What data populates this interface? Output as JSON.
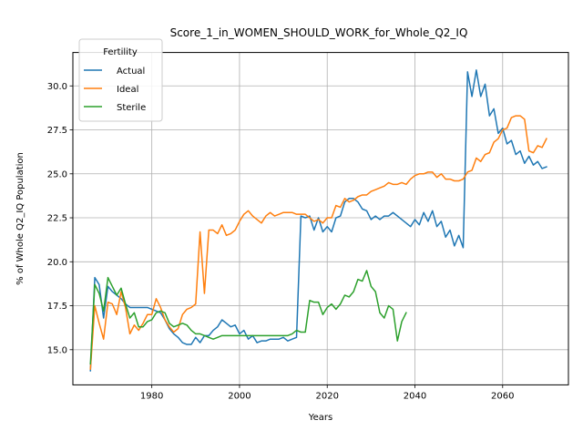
{
  "chart_data": {
    "type": "line",
    "title": "Score_1_in_WOMEN_SHOULD_WORK_for_Whole_Q2_IQ",
    "xlabel": "Years",
    "ylabel": "% of Whole Q2_IQ Population",
    "xlim": [
      1962,
      2075
    ],
    "ylim": [
      13.0,
      31.9
    ],
    "xticks": [
      1980,
      2000,
      2020,
      2040,
      2060
    ],
    "yticks": [
      15.0,
      17.5,
      20.0,
      22.5,
      25.0,
      27.5,
      30.0
    ],
    "xtick_labels": [
      "1980",
      "2000",
      "2020",
      "2040",
      "2060"
    ],
    "ytick_labels": [
      "15.0",
      "17.5",
      "20.0",
      "22.5",
      "25.0",
      "27.5",
      "30.0"
    ],
    "grid": true,
    "legend": {
      "title": "Fertility",
      "placement": "upper left"
    },
    "series": [
      {
        "name": "Actual",
        "color": "#1f77b4",
        "x": [
          1966,
          1967,
          1968,
          1969,
          1970,
          1971,
          1972,
          1973,
          1974,
          1975,
          1976,
          1977,
          1978,
          1979,
          1980,
          1981,
          1982,
          1983,
          1984,
          1985,
          1986,
          1987,
          1988,
          1989,
          1990,
          1991,
          1992,
          1993,
          1994,
          1995,
          1996,
          1997,
          1998,
          1999,
          2000,
          2001,
          2002,
          2003,
          2004,
          2005,
          2006,
          2007,
          2008,
          2009,
          2010,
          2011,
          2012,
          2013,
          2014,
          2015,
          2016,
          2017,
          2018,
          2019,
          2020,
          2021,
          2022,
          2023,
          2024,
          2025,
          2026,
          2027,
          2028,
          2029,
          2030,
          2031,
          2032,
          2033,
          2034,
          2035,
          2036,
          2037,
          2038,
          2039,
          2040,
          2041,
          2042,
          2043,
          2044,
          2045,
          2046,
          2047,
          2048,
          2049,
          2050,
          2051,
          2052,
          2053,
          2054,
          2055,
          2056,
          2057,
          2058,
          2059,
          2060,
          2061,
          2062,
          2063,
          2064,
          2065,
          2066,
          2067,
          2068,
          2069,
          2070
        ],
        "values": [
          13.8,
          19.1,
          18.7,
          16.8,
          18.6,
          18.3,
          18.1,
          17.9,
          17.6,
          17.4,
          17.4,
          17.4,
          17.4,
          17.4,
          17.3,
          17.2,
          17.1,
          16.7,
          16.2,
          15.9,
          15.7,
          15.4,
          15.3,
          15.3,
          15.7,
          15.4,
          15.8,
          15.8,
          16.1,
          16.3,
          16.7,
          16.5,
          16.3,
          16.4,
          15.9,
          16.1,
          15.6,
          15.8,
          15.4,
          15.5,
          15.5,
          15.6,
          15.6,
          15.6,
          15.7,
          15.5,
          15.6,
          15.7,
          22.6,
          22.5,
          22.6,
          21.8,
          22.5,
          21.7,
          22.0,
          21.7,
          22.5,
          22.6,
          23.4,
          23.6,
          23.6,
          23.4,
          23.0,
          22.9,
          22.4,
          22.6,
          22.4,
          22.6,
          22.6,
          22.8,
          22.6,
          22.4,
          22.2,
          22.0,
          22.4,
          22.1,
          22.8,
          22.3,
          22.9,
          22.0,
          22.3,
          21.4,
          21.8,
          20.9,
          21.5,
          20.8,
          30.8,
          29.4,
          30.9,
          29.4,
          30.1,
          28.3,
          28.7,
          27.3,
          27.6,
          26.7,
          26.9,
          26.1,
          26.3,
          25.6,
          26.0,
          25.5,
          25.7,
          25.3,
          25.4
        ]
      },
      {
        "name": "Ideal",
        "color": "#ff7f0e",
        "x": [
          1966,
          1967,
          1968,
          1969,
          1970,
          1971,
          1972,
          1973,
          1974,
          1975,
          1976,
          1977,
          1978,
          1979,
          1980,
          1981,
          1982,
          1983,
          1984,
          1985,
          1986,
          1987,
          1988,
          1989,
          1990,
          1991,
          1992,
          1993,
          1994,
          1995,
          1996,
          1997,
          1998,
          1999,
          2000,
          2001,
          2002,
          2003,
          2004,
          2005,
          2006,
          2007,
          2008,
          2009,
          2010,
          2011,
          2012,
          2013,
          2014,
          2015,
          2016,
          2017,
          2018,
          2019,
          2020,
          2021,
          2022,
          2023,
          2024,
          2025,
          2026,
          2027,
          2028,
          2029,
          2030,
          2031,
          2032,
          2033,
          2034,
          2035,
          2036,
          2037,
          2038,
          2039,
          2040,
          2041,
          2042,
          2043,
          2044,
          2045,
          2046,
          2047,
          2048,
          2049,
          2050,
          2051,
          2052,
          2053,
          2054,
          2055,
          2056,
          2057,
          2058,
          2059,
          2060,
          2061,
          2062,
          2063,
          2064,
          2065,
          2066,
          2067,
          2068,
          2069,
          2070
        ],
        "values": [
          13.9,
          17.5,
          16.5,
          15.6,
          17.7,
          17.6,
          17.0,
          18.3,
          17.4,
          15.9,
          16.4,
          16.1,
          16.5,
          17.0,
          17.0,
          17.9,
          17.4,
          16.7,
          16.3,
          16.0,
          16.2,
          17.0,
          17.3,
          17.4,
          17.6,
          21.7,
          18.2,
          21.8,
          21.8,
          21.6,
          22.1,
          21.5,
          21.6,
          21.8,
          22.3,
          22.7,
          22.9,
          22.6,
          22.4,
          22.2,
          22.6,
          22.8,
          22.6,
          22.7,
          22.8,
          22.8,
          22.8,
          22.7,
          22.7,
          22.7,
          22.5,
          22.3,
          22.4,
          22.2,
          22.5,
          22.5,
          23.2,
          23.1,
          23.6,
          23.4,
          23.5,
          23.7,
          23.8,
          23.8,
          24.0,
          24.1,
          24.2,
          24.3,
          24.5,
          24.4,
          24.4,
          24.5,
          24.4,
          24.7,
          24.9,
          25.0,
          25.0,
          25.1,
          25.1,
          24.8,
          25.0,
          24.7,
          24.7,
          24.6,
          24.6,
          24.7,
          25.1,
          25.2,
          25.9,
          25.7,
          26.1,
          26.2,
          26.8,
          27.0,
          27.5,
          27.6,
          28.2,
          28.3,
          28.3,
          28.1,
          26.3,
          26.2,
          26.6,
          26.5,
          27.0
        ]
      },
      {
        "name": "Sterile",
        "color": "#2ca02c",
        "x": [
          1966,
          1967,
          1968,
          1969,
          1970,
          1971,
          1972,
          1973,
          1974,
          1975,
          1976,
          1977,
          1978,
          1979,
          1980,
          1981,
          1982,
          1983,
          1984,
          1985,
          1986,
          1987,
          1988,
          1989,
          1990,
          1991,
          1992,
          1993,
          1994,
          1995,
          1996,
          1997,
          1998,
          1999,
          2000,
          2001,
          2002,
          2003,
          2004,
          2005,
          2006,
          2007,
          2008,
          2009,
          2010,
          2011,
          2012,
          2013,
          2014,
          2015,
          2016,
          2017,
          2018,
          2019,
          2020,
          2021,
          2022,
          2023,
          2024,
          2025,
          2026,
          2027,
          2028,
          2029,
          2030,
          2031,
          2032,
          2033,
          2034,
          2035,
          2036,
          2037,
          2038
        ],
        "values": [
          14.2,
          18.7,
          18.2,
          17.2,
          19.1,
          18.6,
          18.1,
          18.5,
          17.6,
          16.8,
          17.1,
          16.3,
          16.3,
          16.6,
          16.7,
          17.1,
          17.2,
          17.1,
          16.5,
          16.3,
          16.4,
          16.5,
          16.4,
          16.1,
          15.9,
          15.9,
          15.8,
          15.7,
          15.6,
          15.7,
          15.8,
          15.8,
          15.8,
          15.8,
          15.8,
          15.8,
          15.8,
          15.8,
          15.8,
          15.8,
          15.8,
          15.8,
          15.8,
          15.8,
          15.8,
          15.8,
          15.9,
          16.1,
          16.0,
          16.0,
          17.8,
          17.7,
          17.7,
          17.0,
          17.4,
          17.6,
          17.3,
          17.6,
          18.1,
          18.0,
          18.3,
          19.0,
          18.9,
          19.5,
          18.6,
          18.3,
          17.1,
          16.8,
          17.5,
          17.3,
          15.5,
          16.6,
          17.1
        ]
      }
    ]
  }
}
